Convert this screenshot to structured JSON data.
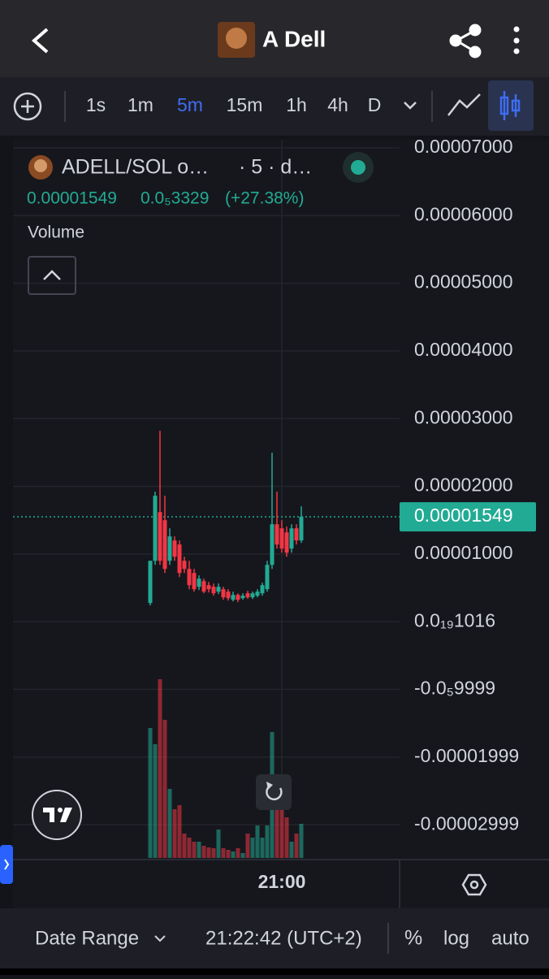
{
  "header": {
    "title": "A Dell"
  },
  "toolbar": {
    "intervals": [
      "1s",
      "1m",
      "5m",
      "15m",
      "1h",
      "4h",
      "D"
    ],
    "active": "5m"
  },
  "legend": {
    "symbol": "ADELL/SOL o…",
    "resolution": "· 5 · d…",
    "price": "0.00001549",
    "change": "0.0₅3329",
    "change_percent": "(+27.38%)",
    "volume_label": "Volume"
  },
  "chart": {
    "type": "candlestick",
    "open": [
      2.76e-06,
      9e-06,
      1.62e-05,
      1.5e-05,
      9e-06,
      1.2e-05,
      1.14e-05,
      9e-06,
      7.8e-06,
      7.2e-06,
      5.16e-06,
      6e-06,
      5.4e-06,
      5.16e-06,
      4.44e-06,
      4.8e-06,
      4.44e-06,
      3.24e-06,
      3.96e-06,
      3.48e-06,
      4.2e-06,
      3.6e-06,
      3.84e-06,
      4.2e-06,
      4.8e-06,
      8.4e-06,
      1.44e-05,
      1.38e-05,
      1.32e-05,
      1.08e-05,
      1.38e-05,
      1.2e-05
    ],
    "high": [
      9e-06,
      1.92e-05,
      2.82e-05,
      1.86e-05,
      1.38e-05,
      1.26e-05,
      1.2e-05,
      9.6e-06,
      9e-06,
      7.8e-06,
      6.84e-06,
      6.36e-06,
      5.88e-06,
      5.64e-06,
      5.64e-06,
      5.16e-06,
      4.8e-06,
      4.44e-06,
      4.2e-06,
      4.2e-06,
      4.56e-06,
      4.44e-06,
      4.8e-06,
      5.76e-06,
      9e-06,
      2.496e-05,
      1.92e-05,
      1.5e-05,
      1.404e-05,
      1.44e-05,
      1.44e-05,
      1.704e-05
    ],
    "low": [
      2.4e-06,
      8.4e-06,
      8.4e-06,
      7.2e-06,
      8.4e-06,
      9e-06,
      6.6e-06,
      7.2e-06,
      4.8e-06,
      4.44e-06,
      4.68e-06,
      4.2e-06,
      4.32e-06,
      3.84e-06,
      4.08e-06,
      3.24e-06,
      3.12e-06,
      3e-06,
      2.88e-06,
      3.24e-06,
      3.36e-06,
      3.36e-06,
      3.6e-06,
      3.84e-06,
      4.44e-06,
      7.8e-06,
      1.08e-05,
      1.02e-05,
      9.6e-06,
      1.02e-05,
      1.14e-05,
      1.164e-05
    ],
    "close": [
      9e-06,
      1.86e-05,
      9e-06,
      7.8e-06,
      1.26e-05,
      9.6e-06,
      7.2e-06,
      7.8e-06,
      5.4e-06,
      4.8e-06,
      6.36e-06,
      4.44e-06,
      4.8e-06,
      4.2e-06,
      5.16e-06,
      3.6e-06,
      3.48e-06,
      3.96e-06,
      3.24e-06,
      3.84e-06,
      3.6e-06,
      4.2e-06,
      4.44e-06,
      5.4e-06,
      8.4e-06,
      1.44e-05,
      1.14e-05,
      1.08e-05,
      1.02e-05,
      1.38e-05,
      1.2e-05,
      1.549e-05
    ],
    "volume": [
      160,
      140,
      220,
      170,
      85,
      60,
      65,
      30,
      25,
      20,
      20,
      15,
      13,
      12,
      35,
      12,
      10,
      8,
      12,
      6,
      30,
      25,
      40,
      25,
      40,
      155,
      60,
      90,
      50,
      20,
      30,
      42
    ],
    "ylim": [
      -3.49e-05,
      7e-05
    ],
    "yticks": [
      {
        "value": 7e-05,
        "label": "0.00007000"
      },
      {
        "value": 6e-05,
        "label": "0.00006000"
      },
      {
        "value": 5e-05,
        "label": "0.00005000"
      },
      {
        "value": 4e-05,
        "label": "0.00004000"
      },
      {
        "value": 3e-05,
        "label": "0.00003000"
      },
      {
        "value": 2e-05,
        "label": "0.00002000"
      },
      {
        "value": 1e-05,
        "label": "0.00001000"
      },
      {
        "value": 0,
        "label": "0.0₁₉1016"
      },
      {
        "value": -1e-05,
        "label": "-0.0₅9999"
      },
      {
        "value": -2e-05,
        "label": "-0.00001999"
      },
      {
        "value": -3e-05,
        "label": "-0.00002999"
      }
    ],
    "last_price": 1.549e-05,
    "up_color": "#22ab94",
    "down_color": "#f23645",
    "xtick": "21:00"
  },
  "footer": {
    "date_range": "Date Range",
    "time": "21:22:42 (UTC+2)",
    "percent": "%",
    "log": "log",
    "auto": "auto"
  }
}
